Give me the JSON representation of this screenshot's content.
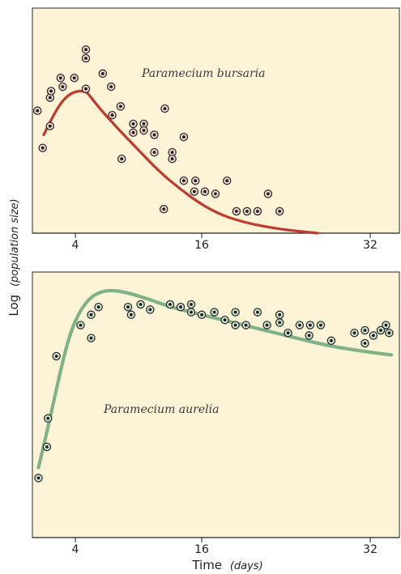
{
  "chart_data": [
    {
      "type": "scatter",
      "annotation": "Paramecium bursaria",
      "x_ticks": [
        4,
        16,
        32
      ],
      "xlim": [
        0,
        34
      ],
      "ylim": [
        0,
        10
      ],
      "colors": {
        "background": "#fdf3d6",
        "line": "#c0392b",
        "marker_fill": "#f2d6cf"
      },
      "points": [
        [
          0.4,
          5.6
        ],
        [
          0.9,
          3.9
        ],
        [
          1.6,
          4.9
        ],
        [
          1.6,
          6.2
        ],
        [
          1.7,
          6.5
        ],
        [
          2.6,
          7.1
        ],
        [
          2.8,
          6.7
        ],
        [
          3.9,
          7.1
        ],
        [
          5.0,
          8.4
        ],
        [
          5.0,
          8.0
        ],
        [
          5.0,
          6.6
        ],
        [
          6.6,
          7.3
        ],
        [
          7.4,
          6.7
        ],
        [
          7.5,
          5.4
        ],
        [
          8.3,
          5.8
        ],
        [
          8.4,
          3.4
        ],
        [
          9.5,
          5.0
        ],
        [
          9.5,
          4.6
        ],
        [
          10.5,
          5.0
        ],
        [
          10.5,
          4.7
        ],
        [
          11.5,
          4.5
        ],
        [
          11.5,
          3.7
        ],
        [
          12.4,
          1.1
        ],
        [
          12.5,
          5.7
        ],
        [
          13.2,
          3.7
        ],
        [
          13.2,
          3.4
        ],
        [
          14.3,
          4.4
        ],
        [
          14.3,
          2.4
        ],
        [
          15.3,
          1.9
        ],
        [
          15.4,
          2.4
        ],
        [
          16.3,
          1.9
        ],
        [
          17.3,
          1.8
        ],
        [
          18.4,
          2.4
        ],
        [
          19.3,
          1.0
        ],
        [
          20.3,
          1.0
        ],
        [
          21.3,
          1.0
        ],
        [
          22.3,
          1.8
        ],
        [
          23.4,
          1.0
        ]
      ],
      "fitted_curve": [
        [
          1.0,
          4.5
        ],
        [
          2.0,
          5.5
        ],
        [
          3.0,
          6.2
        ],
        [
          4.0,
          6.5
        ],
        [
          5.0,
          6.5
        ],
        [
          5.5,
          6.2
        ],
        [
          6.5,
          5.6
        ],
        [
          8.0,
          4.8
        ],
        [
          10.0,
          3.8
        ],
        [
          12.0,
          2.8
        ],
        [
          14.0,
          2.0
        ],
        [
          16.0,
          1.3
        ],
        [
          18.0,
          0.8
        ],
        [
          20.0,
          0.5
        ],
        [
          22.0,
          0.3
        ],
        [
          24.0,
          0.15
        ],
        [
          26.0,
          0.05
        ],
        [
          27.0,
          0.0
        ]
      ]
    },
    {
      "type": "scatter",
      "annotation": "Paramecium aurelia",
      "x_ticks": [
        4,
        16,
        32
      ],
      "xlim": [
        0,
        34
      ],
      "ylim": [
        0,
        10
      ],
      "colors": {
        "background": "#fdf3d6",
        "line": "#7fb286",
        "marker_fill": "#cfe8d2"
      },
      "points": [
        [
          0.5,
          2.3
        ],
        [
          1.3,
          3.5
        ],
        [
          1.4,
          4.6
        ],
        [
          2.2,
          7.0
        ],
        [
          4.5,
          8.2
        ],
        [
          5.5,
          8.6
        ],
        [
          5.5,
          7.7
        ],
        [
          6.2,
          8.9
        ],
        [
          9.0,
          8.9
        ],
        [
          9.3,
          8.6
        ],
        [
          10.2,
          9.0
        ],
        [
          11.1,
          8.8
        ],
        [
          13.0,
          9.0
        ],
        [
          14.0,
          8.9
        ],
        [
          15.0,
          9.0
        ],
        [
          15.0,
          8.7
        ],
        [
          16.0,
          8.6
        ],
        [
          17.2,
          8.7
        ],
        [
          18.2,
          8.4
        ],
        [
          19.2,
          8.7
        ],
        [
          19.2,
          8.2
        ],
        [
          20.2,
          8.2
        ],
        [
          21.3,
          8.7
        ],
        [
          22.2,
          8.2
        ],
        [
          23.4,
          8.6
        ],
        [
          23.4,
          8.3
        ],
        [
          24.2,
          7.9
        ],
        [
          25.3,
          8.2
        ],
        [
          26.3,
          8.2
        ],
        [
          26.2,
          7.8
        ],
        [
          27.3,
          8.2
        ],
        [
          28.3,
          7.6
        ],
        [
          30.5,
          7.9
        ],
        [
          31.5,
          8.0
        ],
        [
          31.5,
          7.5
        ],
        [
          32.3,
          7.8
        ],
        [
          33.0,
          8.0
        ],
        [
          33.5,
          8.2
        ],
        [
          33.8,
          7.9
        ]
      ],
      "fitted_curve": [
        [
          0.5,
          2.7
        ],
        [
          1.5,
          4.4
        ],
        [
          2.5,
          6.3
        ],
        [
          3.5,
          7.9
        ],
        [
          4.5,
          8.8
        ],
        [
          5.5,
          9.3
        ],
        [
          6.5,
          9.5
        ],
        [
          7.5,
          9.55
        ],
        [
          9.0,
          9.45
        ],
        [
          11.0,
          9.2
        ],
        [
          13.0,
          8.9
        ],
        [
          16.0,
          8.6
        ],
        [
          20.0,
          8.2
        ],
        [
          24.0,
          7.8
        ],
        [
          28.0,
          7.4
        ],
        [
          32.0,
          7.15
        ],
        [
          34.0,
          7.05
        ]
      ]
    }
  ],
  "y_axis": {
    "label_main": "Log",
    "label_italic": "(population size)"
  },
  "x_axis": {
    "label_main": "Time",
    "label_italic": "(days)"
  }
}
